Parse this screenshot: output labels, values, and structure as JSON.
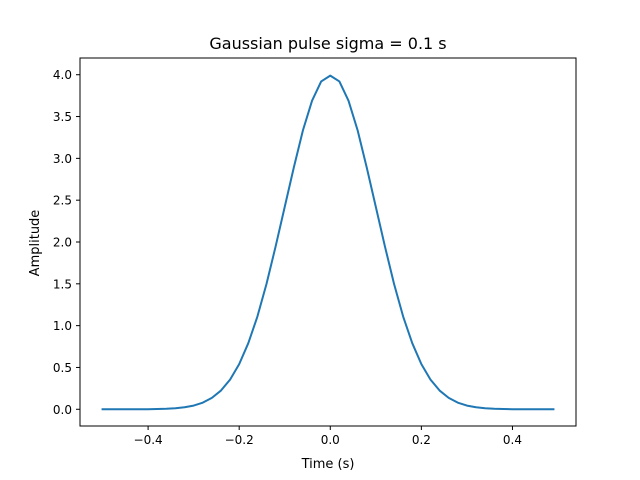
{
  "chart_data": {
    "type": "line",
    "title": "Gaussian pulse sigma = 0.1 s",
    "xlabel": "Time (s)",
    "ylabel": "Amplitude",
    "xlim": [
      -0.5495,
      0.5395
    ],
    "ylim": [
      -0.2,
      4.2
    ],
    "grid": false,
    "x_ticks": [
      {
        "value": -0.4,
        "label": "−0.4"
      },
      {
        "value": -0.2,
        "label": "−0.2"
      },
      {
        "value": 0.0,
        "label": "0.0"
      },
      {
        "value": 0.2,
        "label": "0.2"
      },
      {
        "value": 0.4,
        "label": "0.4"
      }
    ],
    "y_ticks": [
      {
        "value": 0.0,
        "label": "0.0"
      },
      {
        "value": 0.5,
        "label": "0.5"
      },
      {
        "value": 1.0,
        "label": "1.0"
      },
      {
        "value": 1.5,
        "label": "1.5"
      },
      {
        "value": 2.0,
        "label": "2.0"
      },
      {
        "value": 2.5,
        "label": "2.5"
      },
      {
        "value": 3.0,
        "label": "3.0"
      },
      {
        "value": 3.5,
        "label": "3.5"
      },
      {
        "value": 4.0,
        "label": "4.0"
      }
    ],
    "series": [
      {
        "color": "#1f77b4",
        "x": [
          -0.5,
          -0.48,
          -0.46,
          -0.44,
          -0.42,
          -0.4,
          -0.38,
          -0.36,
          -0.34,
          -0.32,
          -0.3,
          -0.28,
          -0.26,
          -0.24,
          -0.22,
          -0.2,
          -0.18,
          -0.16,
          -0.14,
          -0.12,
          -0.1,
          -0.08,
          -0.06,
          -0.04,
          -0.02,
          0.0,
          0.02,
          0.04,
          0.06,
          0.08,
          0.1,
          0.12,
          0.14,
          0.16,
          0.18,
          0.2,
          0.22,
          0.24,
          0.26,
          0.28,
          0.3,
          0.32,
          0.34,
          0.36,
          0.38,
          0.4,
          0.42,
          0.44,
          0.46,
          0.48,
          0.49
        ],
        "y": [
          0.0,
          0.0,
          0.0,
          0.0,
          0.001,
          0.001,
          0.003,
          0.006,
          0.012,
          0.024,
          0.044,
          0.079,
          0.136,
          0.224,
          0.355,
          0.54,
          0.79,
          1.109,
          1.499,
          1.947,
          2.42,
          2.892,
          3.336,
          3.69,
          3.92,
          3.989,
          3.92,
          3.69,
          3.336,
          2.892,
          2.42,
          1.947,
          1.499,
          1.109,
          0.79,
          0.54,
          0.355,
          0.224,
          0.136,
          0.079,
          0.044,
          0.024,
          0.012,
          0.006,
          0.003,
          0.001,
          0.001,
          0.0,
          0.0,
          0.0,
          0.0
        ]
      }
    ]
  }
}
